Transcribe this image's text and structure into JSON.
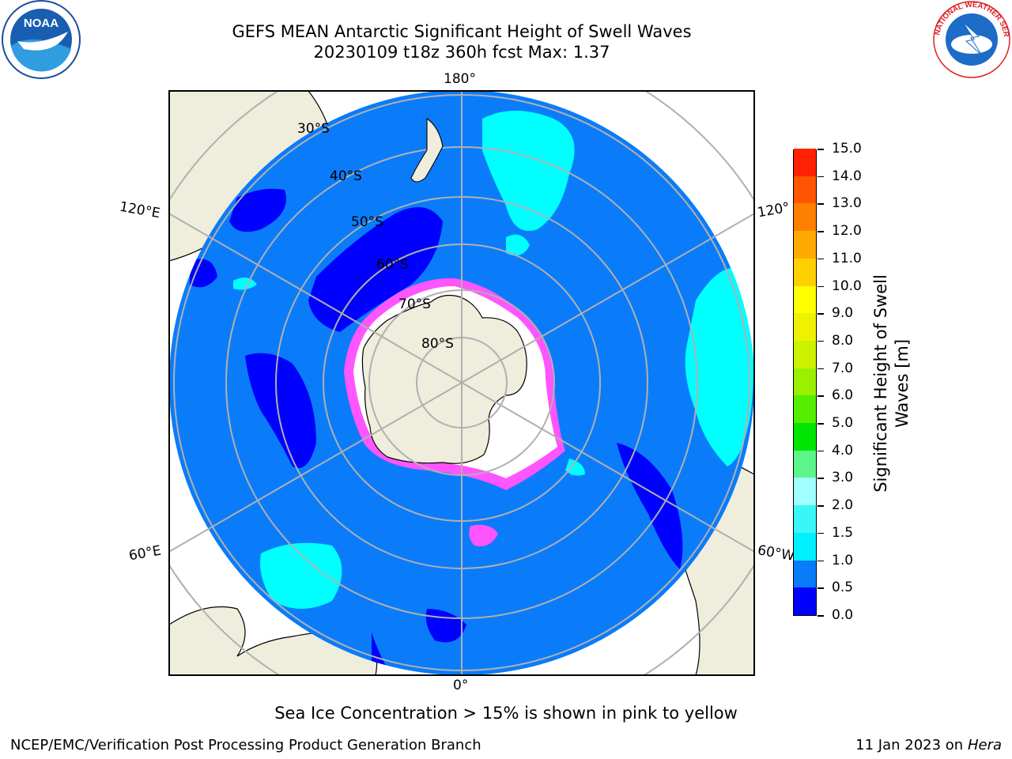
{
  "title": {
    "line1": "GEFS MEAN Antarctic Significant Height of Swell Waves",
    "line2": "20230109 t18z 360h fcst   Max: 1.37"
  },
  "logos": {
    "left": {
      "name": "noaa-logo",
      "text": "NOAA"
    },
    "right": {
      "name": "nws-logo",
      "text": "NATIONAL WEATHER SERVICE"
    }
  },
  "map": {
    "projection": "south polar stereographic",
    "longitude_labels": {
      "top": "180°",
      "bottom": "0°",
      "left_upper": "120°E",
      "left_lower": "60°E",
      "right_upper": "120°",
      "right_lower": "60°W"
    },
    "latitude_labels": [
      "30°S",
      "40°S",
      "50°S",
      "60°S",
      "70°S",
      "80°S"
    ],
    "colors": {
      "ocean_low": "#0a7cfa",
      "ocean_very_low": "#0000ff",
      "ocean_mid": "#00ffff",
      "land": "#efeddb",
      "grid": "#b0b0b0",
      "ice_high": "#ffffff",
      "ice_mid": "#ff55ff"
    }
  },
  "colorbar": {
    "label_line1": "Significant Height of Swell",
    "label_line2": "Waves [m]",
    "ticks": [
      "0.0",
      "0.5",
      "1.0",
      "1.5",
      "2.0",
      "3.0",
      "4.0",
      "5.0",
      "6.0",
      "7.0",
      "8.0",
      "9.0",
      "10.0",
      "11.0",
      "12.0",
      "13.0",
      "14.0",
      "15.0"
    ],
    "colors": [
      "#0000ff",
      "#0a7cfa",
      "#00f0ff",
      "#39f7f7",
      "#a0ffff",
      "#5cf58a",
      "#00e600",
      "#55ee00",
      "#99f000",
      "#ccf200",
      "#eef200",
      "#ffff00",
      "#ffd000",
      "#ffaa00",
      "#ff8000",
      "#ff5500",
      "#ff2200"
    ]
  },
  "note": "Sea Ice Concentration > 15% is shown in pink to yellow",
  "footer": {
    "left": "NCEP/EMC/Verification Post Processing Product Generation Branch",
    "right_prefix": "11 Jan 2023 on ",
    "right_host": "Hera"
  }
}
